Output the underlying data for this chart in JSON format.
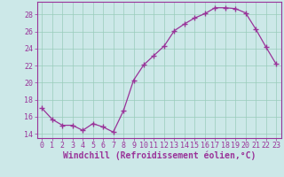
{
  "x": [
    0,
    1,
    2,
    3,
    4,
    5,
    6,
    7,
    8,
    9,
    10,
    11,
    12,
    13,
    14,
    15,
    16,
    17,
    18,
    19,
    20,
    21,
    22,
    23
  ],
  "y": [
    17.0,
    15.7,
    15.0,
    15.0,
    14.4,
    15.2,
    14.8,
    14.2,
    16.7,
    20.3,
    22.1,
    23.2,
    24.3,
    26.1,
    26.9,
    27.6,
    28.1,
    28.8,
    28.8,
    28.7,
    28.2,
    26.3,
    24.2,
    22.2
  ],
  "line_color": "#993399",
  "marker": "+",
  "marker_size": 4,
  "background_color": "#cce8e8",
  "grid_color": "#99ccbb",
  "xlabel": "Windchill (Refroidissement éolien,°C)",
  "xlabel_fontsize": 7,
  "tick_fontsize": 6,
  "ylim": [
    13.5,
    29.5
  ],
  "xlim": [
    -0.5,
    23.5
  ],
  "yticks": [
    14,
    16,
    18,
    20,
    22,
    24,
    26,
    28
  ],
  "xticks": [
    0,
    1,
    2,
    3,
    4,
    5,
    6,
    7,
    8,
    9,
    10,
    11,
    12,
    13,
    14,
    15,
    16,
    17,
    18,
    19,
    20,
    21,
    22,
    23
  ]
}
